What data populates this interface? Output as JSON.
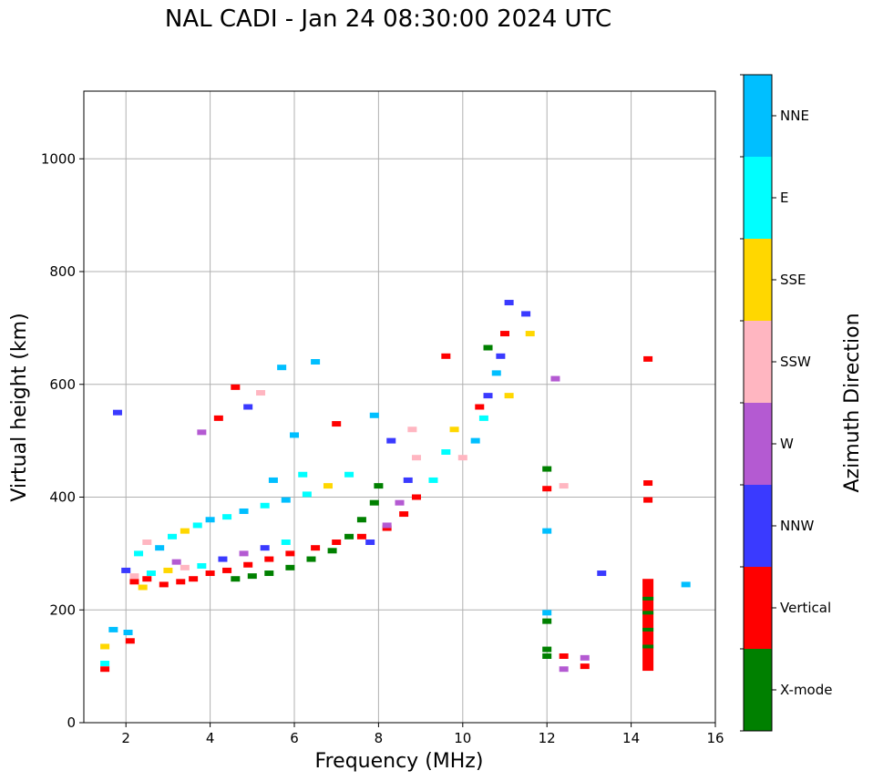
{
  "chart_data": {
    "type": "scatter",
    "title": "NAL CADI - Jan 24 08:30:00 2024 UTC",
    "xlabel": "Frequency (MHz)",
    "ylabel": "Virtual height (km)",
    "xlim": [
      1,
      16
    ],
    "ylim": [
      0,
      1120
    ],
    "xticks": [
      "2",
      "4",
      "6",
      "8",
      "10",
      "12",
      "14",
      "16"
    ],
    "yticks": [
      "0",
      "200",
      "400",
      "600",
      "800",
      "1000"
    ],
    "grid": true,
    "colorbar": {
      "label": "Azimuth Direction",
      "categories": [
        {
          "name": "X-mode",
          "color": "#008000"
        },
        {
          "name": "Vertical",
          "color": "#ff0000"
        },
        {
          "name": "NNW",
          "color": "#3a3aff"
        },
        {
          "name": "W",
          "color": "#b45ad2"
        },
        {
          "name": "SSW",
          "color": "#ffb6c1"
        },
        {
          "name": "SSE",
          "color": "#ffd700"
        },
        {
          "name": "E",
          "color": "#00ffff"
        },
        {
          "name": "NNE",
          "color": "#00bfff"
        }
      ]
    },
    "points": [
      {
        "f": 1.5,
        "h": 135,
        "c": 5
      },
      {
        "f": 1.5,
        "h": 105,
        "c": 6
      },
      {
        "f": 1.5,
        "h": 95,
        "c": 1
      },
      {
        "f": 1.7,
        "h": 165,
        "c": 7
      },
      {
        "f": 1.8,
        "h": 550,
        "c": 2
      },
      {
        "f": 2.05,
        "h": 160,
        "c": 7
      },
      {
        "f": 2.1,
        "h": 145,
        "c": 1
      },
      {
        "f": 2.3,
        "h": 300,
        "c": 6
      },
      {
        "f": 2.5,
        "h": 320,
        "c": 4
      },
      {
        "f": 2.8,
        "h": 310,
        "c": 7
      },
      {
        "f": 3.1,
        "h": 330,
        "c": 6
      },
      {
        "f": 3.4,
        "h": 340,
        "c": 5
      },
      {
        "f": 3.7,
        "h": 350,
        "c": 6
      },
      {
        "f": 4.0,
        "h": 360,
        "c": 7
      },
      {
        "f": 4.4,
        "h": 365,
        "c": 6
      },
      {
        "f": 4.8,
        "h": 375,
        "c": 7
      },
      {
        "f": 5.3,
        "h": 385,
        "c": 6
      },
      {
        "f": 5.8,
        "h": 395,
        "c": 7
      },
      {
        "f": 6.3,
        "h": 405,
        "c": 6
      },
      {
        "f": 6.8,
        "h": 420,
        "c": 5
      },
      {
        "f": 7.3,
        "h": 440,
        "c": 6
      },
      {
        "f": 2.2,
        "h": 260,
        "c": 4
      },
      {
        "f": 2.6,
        "h": 265,
        "c": 6
      },
      {
        "f": 3.0,
        "h": 270,
        "c": 5
      },
      {
        "f": 3.4,
        "h": 275,
        "c": 4
      },
      {
        "f": 3.8,
        "h": 278,
        "c": 6
      },
      {
        "f": 4.3,
        "h": 290,
        "c": 2
      },
      {
        "f": 4.8,
        "h": 300,
        "c": 3
      },
      {
        "f": 5.3,
        "h": 310,
        "c": 2
      },
      {
        "f": 5.8,
        "h": 320,
        "c": 6
      },
      {
        "f": 2.2,
        "h": 250,
        "c": 1
      },
      {
        "f": 2.5,
        "h": 255,
        "c": 1
      },
      {
        "f": 2.9,
        "h": 245,
        "c": 1
      },
      {
        "f": 3.3,
        "h": 250,
        "c": 1
      },
      {
        "f": 3.6,
        "h": 255,
        "c": 1
      },
      {
        "f": 4.0,
        "h": 265,
        "c": 1
      },
      {
        "f": 4.4,
        "h": 270,
        "c": 1
      },
      {
        "f": 4.9,
        "h": 280,
        "c": 1
      },
      {
        "f": 5.4,
        "h": 290,
        "c": 1
      },
      {
        "f": 5.9,
        "h": 300,
        "c": 1
      },
      {
        "f": 6.5,
        "h": 310,
        "c": 1
      },
      {
        "f": 7.0,
        "h": 320,
        "c": 1
      },
      {
        "f": 7.6,
        "h": 330,
        "c": 1
      },
      {
        "f": 8.2,
        "h": 345,
        "c": 1
      },
      {
        "f": 8.6,
        "h": 370,
        "c": 1
      },
      {
        "f": 8.9,
        "h": 400,
        "c": 1
      },
      {
        "f": 4.6,
        "h": 255,
        "c": 0
      },
      {
        "f": 5.0,
        "h": 260,
        "c": 0
      },
      {
        "f": 5.4,
        "h": 265,
        "c": 0
      },
      {
        "f": 5.9,
        "h": 275,
        "c": 0
      },
      {
        "f": 6.4,
        "h": 290,
        "c": 0
      },
      {
        "f": 6.9,
        "h": 305,
        "c": 0
      },
      {
        "f": 7.3,
        "h": 330,
        "c": 0
      },
      {
        "f": 7.6,
        "h": 360,
        "c": 0
      },
      {
        "f": 7.9,
        "h": 390,
        "c": 0
      },
      {
        "f": 8.0,
        "h": 420,
        "c": 0
      },
      {
        "f": 7.8,
        "h": 320,
        "c": 2
      },
      {
        "f": 8.2,
        "h": 350,
        "c": 3
      },
      {
        "f": 8.5,
        "h": 390,
        "c": 3
      },
      {
        "f": 8.7,
        "h": 430,
        "c": 2
      },
      {
        "f": 8.9,
        "h": 470,
        "c": 4
      },
      {
        "f": 8.3,
        "h": 500,
        "c": 2
      },
      {
        "f": 8.8,
        "h": 520,
        "c": 4
      },
      {
        "f": 9.3,
        "h": 430,
        "c": 6
      },
      {
        "f": 9.6,
        "h": 480,
        "c": 6
      },
      {
        "f": 9.8,
        "h": 520,
        "c": 5
      },
      {
        "f": 10.0,
        "h": 470,
        "c": 4
      },
      {
        "f": 10.3,
        "h": 500,
        "c": 7
      },
      {
        "f": 10.5,
        "h": 540,
        "c": 6
      },
      {
        "f": 10.6,
        "h": 580,
        "c": 2
      },
      {
        "f": 10.8,
        "h": 620,
        "c": 7
      },
      {
        "f": 10.9,
        "h": 650,
        "c": 2
      },
      {
        "f": 11.0,
        "h": 690,
        "c": 1
      },
      {
        "f": 11.1,
        "h": 580,
        "c": 5
      },
      {
        "f": 10.4,
        "h": 560,
        "c": 1
      },
      {
        "f": 10.6,
        "h": 665,
        "c": 0
      },
      {
        "f": 11.1,
        "h": 745,
        "c": 2
      },
      {
        "f": 11.5,
        "h": 725,
        "c": 2
      },
      {
        "f": 11.6,
        "h": 690,
        "c": 5
      },
      {
        "f": 12.0,
        "h": 450,
        "c": 0
      },
      {
        "f": 12.0,
        "h": 415,
        "c": 1
      },
      {
        "f": 12.0,
        "h": 340,
        "c": 7
      },
      {
        "f": 12.0,
        "h": 195,
        "c": 7
      },
      {
        "f": 12.0,
        "h": 180,
        "c": 0
      },
      {
        "f": 12.0,
        "h": 130,
        "c": 0
      },
      {
        "f": 12.0,
        "h": 118,
        "c": 0
      },
      {
        "f": 12.2,
        "h": 610,
        "c": 3
      },
      {
        "f": 12.4,
        "h": 420,
        "c": 4
      },
      {
        "f": 12.4,
        "h": 118,
        "c": 1
      },
      {
        "f": 12.4,
        "h": 95,
        "c": 3
      },
      {
        "f": 12.9,
        "h": 115,
        "c": 3
      },
      {
        "f": 12.9,
        "h": 100,
        "c": 1
      },
      {
        "f": 13.3,
        "h": 265,
        "c": 2
      },
      {
        "f": 14.4,
        "h": 645,
        "c": 1
      },
      {
        "f": 14.4,
        "h": 425,
        "c": 1
      },
      {
        "f": 14.4,
        "h": 395,
        "c": 1
      },
      {
        "f": 15.3,
        "h": 245,
        "c": 7
      },
      {
        "f": 2.0,
        "h": 270,
        "c": 2
      },
      {
        "f": 2.4,
        "h": 240,
        "c": 5
      },
      {
        "f": 3.2,
        "h": 285,
        "c": 3
      },
      {
        "f": 4.2,
        "h": 540,
        "c": 1
      },
      {
        "f": 4.6,
        "h": 595,
        "c": 1
      },
      {
        "f": 5.2,
        "h": 585,
        "c": 4
      },
      {
        "f": 5.7,
        "h": 630,
        "c": 7
      },
      {
        "f": 6.5,
        "h": 640,
        "c": 7
      },
      {
        "f": 6.0,
        "h": 510,
        "c": 7
      },
      {
        "f": 6.2,
        "h": 440,
        "c": 6
      },
      {
        "f": 7.0,
        "h": 530,
        "c": 1
      },
      {
        "f": 7.9,
        "h": 545,
        "c": 7
      },
      {
        "f": 3.8,
        "h": 515,
        "c": 3
      },
      {
        "f": 5.5,
        "h": 430,
        "c": 7
      },
      {
        "f": 4.9,
        "h": 560,
        "c": 2
      },
      {
        "f": 9.6,
        "h": 650,
        "c": 1
      }
    ],
    "bars": [
      {
        "f": 14.4,
        "h_min": 92,
        "h_max": 255,
        "c": 1,
        "marks": [
          135,
          165,
          195,
          220
        ]
      }
    ]
  }
}
